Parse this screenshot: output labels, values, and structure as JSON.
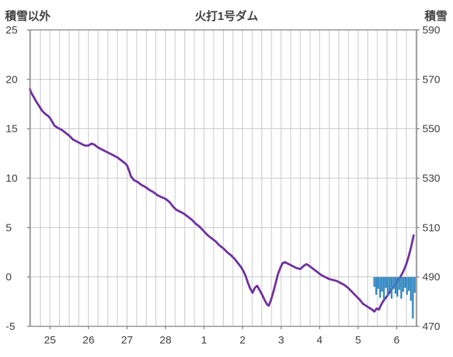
{
  "header": {
    "left_label": "積雪以外",
    "title": "火打1号ダム",
    "right_label": "積雪"
  },
  "chart_data": {
    "type": "line",
    "title": "火打1号ダム",
    "background": "#FFFFFF",
    "grid_color": "#C6C6C6",
    "frame_color": "#7F7F7F",
    "text_color": "#404040",
    "x_axis": {
      "domain": [
        24.48,
        34.52
      ],
      "minor_step": 0.25,
      "tick_values": [
        25,
        26,
        27,
        28,
        29,
        30,
        31,
        32,
        33,
        34
      ],
      "tick_labels": [
        "25",
        "26",
        "27",
        "28",
        "1",
        "2",
        "3",
        "4",
        "5",
        "6"
      ]
    },
    "left_axis": {
      "label": "積雪以外",
      "min": -5,
      "max": 25,
      "tick_values": [
        25,
        20,
        15,
        10,
        5,
        0,
        -5
      ]
    },
    "right_axis": {
      "label": "積雪",
      "min": 470,
      "max": 590,
      "tick_values": [
        590,
        570,
        550,
        530,
        510,
        490,
        470
      ]
    },
    "series": [
      {
        "name": "line-series",
        "type": "line",
        "axis": "left",
        "color": "#7030A0",
        "width": 3,
        "points": [
          [
            24.48,
            19.0
          ],
          [
            24.52,
            18.6
          ],
          [
            24.58,
            18.2
          ],
          [
            24.65,
            17.7
          ],
          [
            24.72,
            17.3
          ],
          [
            24.8,
            16.8
          ],
          [
            24.88,
            16.5
          ],
          [
            24.95,
            16.3
          ],
          [
            25.0,
            16.1
          ],
          [
            25.06,
            15.7
          ],
          [
            25.12,
            15.3
          ],
          [
            25.2,
            15.1
          ],
          [
            25.3,
            14.9
          ],
          [
            25.4,
            14.6
          ],
          [
            25.5,
            14.3
          ],
          [
            25.6,
            13.9
          ],
          [
            25.7,
            13.7
          ],
          [
            25.8,
            13.5
          ],
          [
            25.9,
            13.3
          ],
          [
            26.0,
            13.3
          ],
          [
            26.08,
            13.5
          ],
          [
            26.15,
            13.4
          ],
          [
            26.25,
            13.1
          ],
          [
            26.35,
            12.9
          ],
          [
            26.45,
            12.7
          ],
          [
            26.55,
            12.5
          ],
          [
            26.65,
            12.3
          ],
          [
            26.75,
            12.1
          ],
          [
            26.85,
            11.8
          ],
          [
            26.95,
            11.5
          ],
          [
            27.0,
            11.3
          ],
          [
            27.05,
            10.8
          ],
          [
            27.1,
            10.2
          ],
          [
            27.18,
            9.8
          ],
          [
            27.28,
            9.6
          ],
          [
            27.38,
            9.3
          ],
          [
            27.48,
            9.1
          ],
          [
            27.58,
            8.8
          ],
          [
            27.68,
            8.6
          ],
          [
            27.78,
            8.3
          ],
          [
            27.88,
            8.1
          ],
          [
            28.0,
            7.9
          ],
          [
            28.1,
            7.6
          ],
          [
            28.2,
            7.1
          ],
          [
            28.28,
            6.8
          ],
          [
            28.38,
            6.6
          ],
          [
            28.48,
            6.4
          ],
          [
            28.58,
            6.1
          ],
          [
            28.68,
            5.8
          ],
          [
            28.78,
            5.4
          ],
          [
            28.88,
            5.1
          ],
          [
            29.0,
            4.6
          ],
          [
            29.1,
            4.2
          ],
          [
            29.2,
            3.9
          ],
          [
            29.3,
            3.6
          ],
          [
            29.4,
            3.2
          ],
          [
            29.5,
            2.9
          ],
          [
            29.6,
            2.5
          ],
          [
            29.7,
            2.2
          ],
          [
            29.8,
            1.8
          ],
          [
            29.9,
            1.3
          ],
          [
            29.96,
            1.0
          ],
          [
            30.02,
            0.6
          ],
          [
            30.08,
            0.1
          ],
          [
            30.14,
            -0.6
          ],
          [
            30.2,
            -1.2
          ],
          [
            30.26,
            -1.6
          ],
          [
            30.32,
            -1.1
          ],
          [
            30.38,
            -0.9
          ],
          [
            30.44,
            -1.3
          ],
          [
            30.52,
            -1.9
          ],
          [
            30.58,
            -2.4
          ],
          [
            30.64,
            -2.8
          ],
          [
            30.68,
            -2.9
          ],
          [
            30.74,
            -2.3
          ],
          [
            30.8,
            -1.5
          ],
          [
            30.86,
            -0.6
          ],
          [
            30.92,
            0.3
          ],
          [
            30.98,
            0.9
          ],
          [
            31.04,
            1.4
          ],
          [
            31.1,
            1.5
          ],
          [
            31.2,
            1.3
          ],
          [
            31.3,
            1.1
          ],
          [
            31.4,
            0.9
          ],
          [
            31.5,
            0.8
          ],
          [
            31.58,
            1.1
          ],
          [
            31.66,
            1.3
          ],
          [
            31.74,
            1.1
          ],
          [
            31.84,
            0.8
          ],
          [
            31.94,
            0.5
          ],
          [
            32.04,
            0.2
          ],
          [
            32.14,
            0.0
          ],
          [
            32.24,
            -0.2
          ],
          [
            32.34,
            -0.3
          ],
          [
            32.44,
            -0.4
          ],
          [
            32.54,
            -0.6
          ],
          [
            32.64,
            -0.8
          ],
          [
            32.74,
            -1.1
          ],
          [
            32.84,
            -1.5
          ],
          [
            32.94,
            -1.9
          ],
          [
            33.04,
            -2.3
          ],
          [
            33.12,
            -2.7
          ],
          [
            33.2,
            -2.9
          ],
          [
            33.28,
            -3.1
          ],
          [
            33.36,
            -3.3
          ],
          [
            33.42,
            -3.5
          ],
          [
            33.48,
            -3.2
          ],
          [
            33.54,
            -3.3
          ],
          [
            33.6,
            -2.8
          ],
          [
            33.66,
            -2.4
          ],
          [
            33.72,
            -2.1
          ],
          [
            33.78,
            -1.8
          ],
          [
            33.84,
            -1.4
          ],
          [
            33.9,
            -1.1
          ],
          [
            33.96,
            -0.8
          ],
          [
            34.02,
            -0.4
          ],
          [
            34.08,
            -0.1
          ],
          [
            34.14,
            0.3
          ],
          [
            34.2,
            0.8
          ],
          [
            34.26,
            1.4
          ],
          [
            34.32,
            2.2
          ],
          [
            34.38,
            3.1
          ],
          [
            34.44,
            4.2
          ]
        ]
      },
      {
        "name": "bar-series",
        "type": "bar",
        "axis": "left",
        "color": "#2E86C1",
        "bar_width_days": 0.045,
        "points": [
          [
            33.42,
            -1.0
          ],
          [
            33.47,
            -1.8
          ],
          [
            33.52,
            -1.2
          ],
          [
            33.57,
            -2.1
          ],
          [
            33.62,
            -1.5
          ],
          [
            33.67,
            -2.3
          ],
          [
            33.72,
            -1.1
          ],
          [
            33.77,
            -1.9
          ],
          [
            33.82,
            -1.4
          ],
          [
            33.87,
            -2.2
          ],
          [
            33.92,
            -1.2
          ],
          [
            33.97,
            -1.7
          ],
          [
            34.02,
            -2.0
          ],
          [
            34.07,
            -1.3
          ],
          [
            34.12,
            -2.2
          ],
          [
            34.17,
            -1.5
          ],
          [
            34.22,
            -1.1
          ],
          [
            34.27,
            -1.8
          ],
          [
            34.32,
            -1.4
          ],
          [
            34.37,
            -2.4
          ],
          [
            34.42,
            -4.2
          ],
          [
            34.47,
            -1.6
          ]
        ]
      }
    ]
  }
}
